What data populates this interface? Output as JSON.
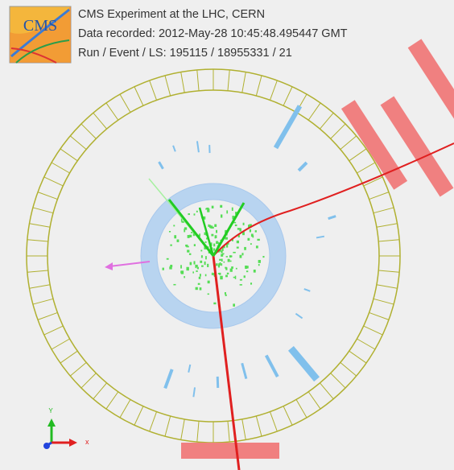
{
  "header": {
    "logo": "CMS",
    "lines": [
      "CMS Experiment at the LHC, CERN",
      "Data recorded: 2012-May-28 10:45:48.495447 GMT",
      "Run / Event / LS: 195115 / 18955331 / 21"
    ]
  },
  "axes": {
    "y": "Y",
    "x": "x"
  }
}
